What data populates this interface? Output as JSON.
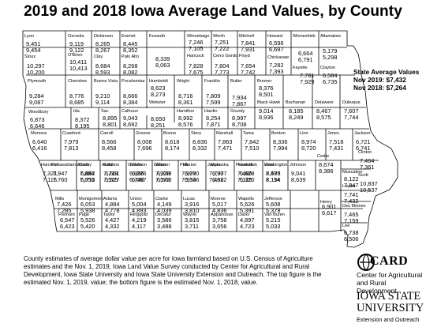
{
  "title": "2019 and 2018 Iowa Average Land Values, by County",
  "state_average": {
    "heading": "State Average Values",
    "line_2019": "Nov 2019: $7,432",
    "line_2018": "Nov 2018: $7,264"
  },
  "footnote": "County estimates of average dollar value per acre for Iowa farmland based on U.S. Census of Agriculture estimates and the Nov. 1, 2019, Iowa Land Value Survey conducted by Center for Agricultural and Rural Development, Iowa State University and Iowa State University Extension and Outreach. The top figure is the estimated Nov. 1, 2019, value; the bottom figure is the estimated Nov. 1, 2018, value.",
  "card": {
    "name": "CARD",
    "sub1": "Center for Agricultural",
    "sub2": "and Rural Development"
  },
  "isu": {
    "line1": "IOWA STATE",
    "line2": "UNIVERSITY",
    "ext": "Extension and Outreach"
  },
  "colors": {
    "border": "#000000",
    "background": "#ffffff"
  },
  "counties": [
    {
      "name": "Lyon",
      "v2019": "9,451",
      "v2018": "9,454"
    },
    {
      "name": "Osceola",
      "v2019": "9,119",
      "v2018": "9,122"
    },
    {
      "name": "Dickinson",
      "v2019": "8,265",
      "v2018": "8,267"
    },
    {
      "name": "Emmet",
      "v2019": "8,445",
      "v2018": "8,352"
    },
    {
      "name": "Kossuth",
      "v2019": "8,339",
      "v2018": "8,063"
    },
    {
      "name": "Winnebago",
      "v2019": "7,246",
      "v2018": "7,105"
    },
    {
      "name": "Worth",
      "v2019": "7,251",
      "v2018": "7,222"
    },
    {
      "name": "Mitchell",
      "v2019": "7,841",
      "v2018": "7,931"
    },
    {
      "name": "Howard",
      "v2019": "6,596",
      "v2018": "6,697"
    },
    {
      "name": "Winneshiek",
      "v2019": "6,664",
      "v2018": "6,791"
    },
    {
      "name": "Allamakee",
      "v2019": "5,179",
      "v2018": "5,298"
    },
    {
      "name": "Sioux",
      "v2019": "10,297",
      "v2018": "10,200"
    },
    {
      "name": "O'Brien",
      "v2019": "10,411",
      "v2018": "10,413"
    },
    {
      "name": "Clay",
      "v2019": "8,684",
      "v2018": "8,593"
    },
    {
      "name": "Palo Alto",
      "v2019": "8,268",
      "v2018": "8,082"
    },
    {
      "name": "Hancock",
      "v2019": "7,828",
      "v2018": "7,675"
    },
    {
      "name": "Cerro Gordo",
      "v2019": "7,804",
      "v2018": "7,773"
    },
    {
      "name": "Floyd",
      "v2019": "7,654",
      "v2018": "7,742"
    },
    {
      "name": "Chickasaw",
      "v2019": "7,282",
      "v2018": "7,393"
    },
    {
      "name": "Fayette",
      "v2019": "7,781",
      "v2018": "7,929"
    },
    {
      "name": "Clayton",
      "v2019": "6,584",
      "v2018": "6,735"
    },
    {
      "name": "Plymouth",
      "v2019": "9,284",
      "v2018": "9,087"
    },
    {
      "name": "Cherokee",
      "v2019": "8,776",
      "v2018": "8,685"
    },
    {
      "name": "Buena Vista",
      "v2019": "9,210",
      "v2018": "9,114"
    },
    {
      "name": "Pocahontas",
      "v2019": "8,666",
      "v2018": "8,384"
    },
    {
      "name": "Humboldt",
      "v2019": "8,623",
      "v2018": "8,273"
    },
    {
      "name": "Wright",
      "v2019": "8,716",
      "v2018": "8,361"
    },
    {
      "name": "Franklin",
      "v2019": "7,809",
      "v2018": "7,599"
    },
    {
      "name": "Butler",
      "v2019": "7,934",
      "v2018": "7,867"
    },
    {
      "name": "Bremer",
      "v2019": "8,376",
      "v2018": "8,501"
    },
    {
      "name": "Black Hawk",
      "v2019": "9,014",
      "v2018": "8,936"
    },
    {
      "name": "Buchanan",
      "v2019": "8,185",
      "v2018": "8,249"
    },
    {
      "name": "Delaware",
      "v2019": "8,467",
      "v2018": "8,575"
    },
    {
      "name": "Dubuque",
      "v2019": "7,607",
      "v2018": "7,744"
    },
    {
      "name": "Woodbury",
      "v2019": "6,873",
      "v2018": "6,646"
    },
    {
      "name": "Ida",
      "v2019": "8,372",
      "v2018": "8,195"
    },
    {
      "name": "Sac",
      "v2019": "8,895",
      "v2018": "8,801"
    },
    {
      "name": "Calhoun",
      "v2019": "9,043",
      "v2018": "8,692"
    },
    {
      "name": "Webster",
      "v2019": "8,650",
      "v2018": "8,251"
    },
    {
      "name": "Hamilton",
      "v2019": "8,992",
      "v2018": "8,576"
    },
    {
      "name": "Hardin",
      "v2019": "8,254",
      "v2018": "7,871"
    },
    {
      "name": "Grundy",
      "v2019": "8,997",
      "v2018": "8,708"
    },
    {
      "name": "Monona",
      "v2019": "6,640",
      "v2018": "6,416"
    },
    {
      "name": "Crawford",
      "v2019": "7,979",
      "v2018": "7,813"
    },
    {
      "name": "Carroll",
      "v2019": "8,566",
      "v2018": "8,458"
    },
    {
      "name": "Greene",
      "v2019": "8,008",
      "v2018": "7,696"
    },
    {
      "name": "Boone",
      "v2019": "8,618",
      "v2018": "8,174"
    },
    {
      "name": "Story",
      "v2019": "8,836",
      "v2018": "8,332"
    },
    {
      "name": "Marshall",
      "v2019": "7,863",
      "v2018": "7,471"
    },
    {
      "name": "Tama",
      "v2019": "7,842",
      "v2018": "7,510"
    },
    {
      "name": "Benton",
      "v2019": "8,336",
      "v2018": "7,994"
    },
    {
      "name": "Linn",
      "v2019": "8,974",
      "v2018": "8,720"
    },
    {
      "name": "Jones",
      "v2019": "7,518",
      "v2018": "7,431"
    },
    {
      "name": "Jackson",
      "v2019": "6,721",
      "v2018": "6,741"
    },
    {
      "name": "Clinton",
      "v2019": "7,464",
      "v2018": "7,361"
    },
    {
      "name": "Harrison",
      "v2019": "7,321",
      "v2018": "7,115"
    },
    {
      "name": "Shelby",
      "v2019": "7,884",
      "v2018": "7,656"
    },
    {
      "name": "Audubon",
      "v2019": "7,719",
      "v2018": "7,525"
    },
    {
      "name": "Guthrie",
      "v2019": "6,996",
      "v2018": "6,748"
    },
    {
      "name": "Dallas",
      "v2019": "7,928",
      "v2018": "7,573"
    },
    {
      "name": "Polk",
      "v2019": "7,909",
      "v2018": "7,534"
    },
    {
      "name": "Jasper",
      "v2019": "7,797",
      "v2018": "7,438"
    },
    {
      "name": "Poweshiek",
      "v2019": "7,486",
      "v2018": "7,125"
    },
    {
      "name": "Iowa",
      "v2019": "7,475",
      "v2018": "7,114"
    },
    {
      "name": "Johnson",
      "v2019": "9,041",
      "v2018": "8,639"
    },
    {
      "name": "Cedar",
      "v2019": "8,674",
      "v2018": "8,386"
    },
    {
      "name": "Scott",
      "v2019": "10,837",
      "v2018": "10,537"
    },
    {
      "name": "Muscatine",
      "v2019": "8,122",
      "v2018": "7,847"
    },
    {
      "name": "Pottawattamie",
      "v2019": "7,947",
      "v2018": "7,760"
    },
    {
      "name": "Cass",
      "v2019": "6,882",
      "v2018": "6,713"
    },
    {
      "name": "Adair",
      "v2019": "5,661",
      "v2018": "5,527"
    },
    {
      "name": "Madison",
      "v2019": "6,226",
      "v2018": "6,067"
    },
    {
      "name": "Warren",
      "v2019": "6,769",
      "v2018": "6,560"
    },
    {
      "name": "Marion",
      "v2019": "6,770",
      "v2018": "6,536"
    },
    {
      "name": "Mahaska",
      "v2019": "6,907",
      "v2018": "6,622"
    },
    {
      "name": "Keokuk",
      "v2019": "6,628",
      "v2018": "6,320"
    },
    {
      "name": "Washington",
      "v2019": "8,593",
      "v2018": "8,194"
    },
    {
      "name": "Louisa",
      "v2019": "7,741",
      "v2018": "7,432"
    },
    {
      "name": "Mills",
      "v2019": "7,426",
      "v2018": "7,285"
    },
    {
      "name": "Montgomery",
      "v2019": "6,053",
      "v2018": "5,938"
    },
    {
      "name": "Adams",
      "v2019": "4,884",
      "v2018": "4,778"
    },
    {
      "name": "Union",
      "v2019": "5,004",
      "v2018": "4,893"
    },
    {
      "name": "Clarke",
      "v2019": "4,149",
      "v2018": "4,039"
    },
    {
      "name": "Lucas",
      "v2019": "3,916",
      "v2018": "3,810"
    },
    {
      "name": "Monroe",
      "v2019": "5,017",
      "v2018": "4,836"
    },
    {
      "name": "Wapello",
      "v2019": "5,626",
      "v2018": "5,391"
    },
    {
      "name": "Jefferson",
      "v2019": "5,608",
      "v2018": "5,378"
    },
    {
      "name": "Henry",
      "v2019": "6,901",
      "v2018": "6,617"
    },
    {
      "name": "Des Moines",
      "v2019": "7,465",
      "v2018": "7,159"
    },
    {
      "name": "Fremont",
      "v2019": "6,547",
      "v2018": "6,423"
    },
    {
      "name": "Page",
      "v2019": "5,526",
      "v2018": "5,420"
    },
    {
      "name": "Taylor",
      "v2019": "4,427",
      "v2018": "4,332"
    },
    {
      "name": "Ringgold",
      "v2019": "4,219",
      "v2018": "4,117"
    },
    {
      "name": "Decatur",
      "v2019": "3,586",
      "v2018": "3,488"
    },
    {
      "name": "Wayne",
      "v2019": "3,815",
      "v2018": "3,711"
    },
    {
      "name": "Appanoose",
      "v2019": "3,758",
      "v2018": "3,656"
    },
    {
      "name": "Davis",
      "v2019": "4,897",
      "v2018": "4,723"
    },
    {
      "name": "Van Buren",
      "v2019": "5,215",
      "v2018": "5,033"
    },
    {
      "name": "Lee",
      "v2019": "6,738",
      "v2018": "6,506"
    }
  ]
}
